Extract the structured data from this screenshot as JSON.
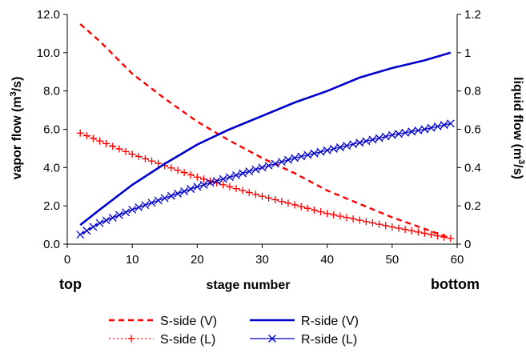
{
  "chart_data": {
    "type": "line",
    "xlabel": "stage number",
    "x_end_labels": {
      "left": "top",
      "right": "bottom"
    },
    "ylabel_left": {
      "text": "vapor flow (m",
      "sup": "3",
      "suffix": "/s)"
    },
    "ylabel_right": {
      "text": "liquid flow (m",
      "sup": "3",
      "suffix": "/s)"
    },
    "xlim": [
      0,
      60
    ],
    "ylim_left": [
      0,
      12
    ],
    "ylim_right": [
      0,
      1.2
    ],
    "x_ticks": [
      "0",
      "10",
      "20",
      "30",
      "40",
      "50",
      "60"
    ],
    "y_left_ticks": [
      "0.0",
      "2.0",
      "4.0",
      "6.0",
      "8.0",
      "10.0",
      "12.0"
    ],
    "y_right_ticks": [
      "0",
      "0.2",
      "0.4",
      "0.6",
      "0.8",
      "1",
      "1.2"
    ],
    "grid": false,
    "legend_position": "bottom",
    "series": [
      {
        "name": "S-side (V)",
        "axis": "left",
        "color": "#ff0000",
        "style": "dashed",
        "marker": "none",
        "x": [
          2,
          5,
          10,
          15,
          20,
          25,
          30,
          35,
          40,
          45,
          50,
          55,
          59
        ],
        "values": [
          11.5,
          10.6,
          8.9,
          7.6,
          6.4,
          5.4,
          4.5,
          3.7,
          2.8,
          2.1,
          1.4,
          0.8,
          0.3
        ]
      },
      {
        "name": "S-side (L)",
        "axis": "right",
        "color": "#ff0000",
        "style": "dotted",
        "marker": "plus",
        "x": [
          2,
          10,
          20,
          30,
          40,
          50,
          59
        ],
        "values": [
          0.58,
          0.47,
          0.35,
          0.25,
          0.16,
          0.09,
          0.03
        ]
      },
      {
        "name": "R-side (V)",
        "axis": "left",
        "color": "#0000cc",
        "style": "solid",
        "marker": "none",
        "x": [
          2,
          5,
          10,
          15,
          20,
          25,
          30,
          35,
          40,
          45,
          50,
          55,
          59
        ],
        "values": [
          1.0,
          1.8,
          3.1,
          4.2,
          5.2,
          6.0,
          6.7,
          7.4,
          8.0,
          8.7,
          9.2,
          9.6,
          10.0
        ]
      },
      {
        "name": "R-side (L)",
        "axis": "right",
        "color": "#0000cc",
        "style": "solid",
        "marker": "x",
        "x": [
          2,
          5,
          10,
          15,
          20,
          25,
          30,
          35,
          40,
          45,
          50,
          55,
          59
        ],
        "values": [
          0.05,
          0.11,
          0.18,
          0.24,
          0.3,
          0.35,
          0.4,
          0.45,
          0.49,
          0.53,
          0.57,
          0.6,
          0.63
        ]
      }
    ]
  }
}
